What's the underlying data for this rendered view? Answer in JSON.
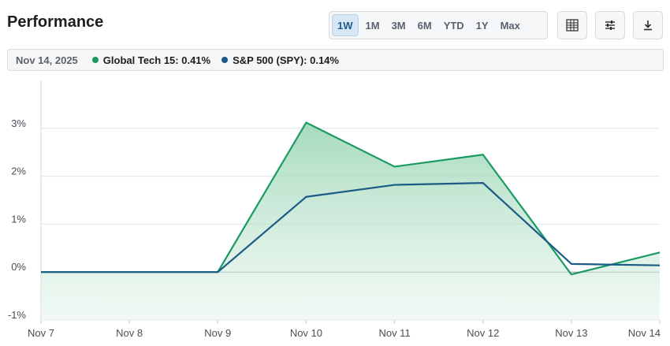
{
  "header": {
    "title": "Performance"
  },
  "ranges": [
    {
      "label": "1W",
      "active": true
    },
    {
      "label": "1M",
      "active": false
    },
    {
      "label": "3M",
      "active": false
    },
    {
      "label": "6M",
      "active": false
    },
    {
      "label": "YTD",
      "active": false
    },
    {
      "label": "1Y",
      "active": false
    },
    {
      "label": "Max",
      "active": false
    }
  ],
  "toolbar": {
    "icons": [
      "table-icon",
      "settings-sliders-icon",
      "download-icon"
    ]
  },
  "legend": {
    "date": "Nov 14, 2025",
    "items": [
      {
        "label": "Global Tech 15: 0.41%",
        "color": "#1a9a62"
      },
      {
        "label": "S&P 500 (SPY): 0.14%",
        "color": "#1b5b86"
      }
    ]
  },
  "chart_data": {
    "type": "area",
    "categories": [
      "Nov 7",
      "Nov 8",
      "Nov 9",
      "Nov 10",
      "Nov 11",
      "Nov 12",
      "Nov 13",
      "Nov 14"
    ],
    "y_tick_labels": [
      "-1%",
      "0%",
      "1%",
      "2%",
      "3%"
    ],
    "y_ticks": [
      -1,
      0,
      1,
      2,
      3
    ],
    "ylim": [
      -1,
      4
    ],
    "series": [
      {
        "name": "Global Tech 15",
        "color": "#1a9a62",
        "fill": true,
        "values": [
          0,
          0,
          0,
          3.12,
          2.2,
          2.45,
          -0.05,
          0.41
        ]
      },
      {
        "name": "S&P 500 (SPY)",
        "color": "#1b5b86",
        "fill": false,
        "values": [
          0,
          0,
          0,
          1.57,
          1.82,
          1.86,
          0.17,
          0.14
        ]
      }
    ]
  }
}
